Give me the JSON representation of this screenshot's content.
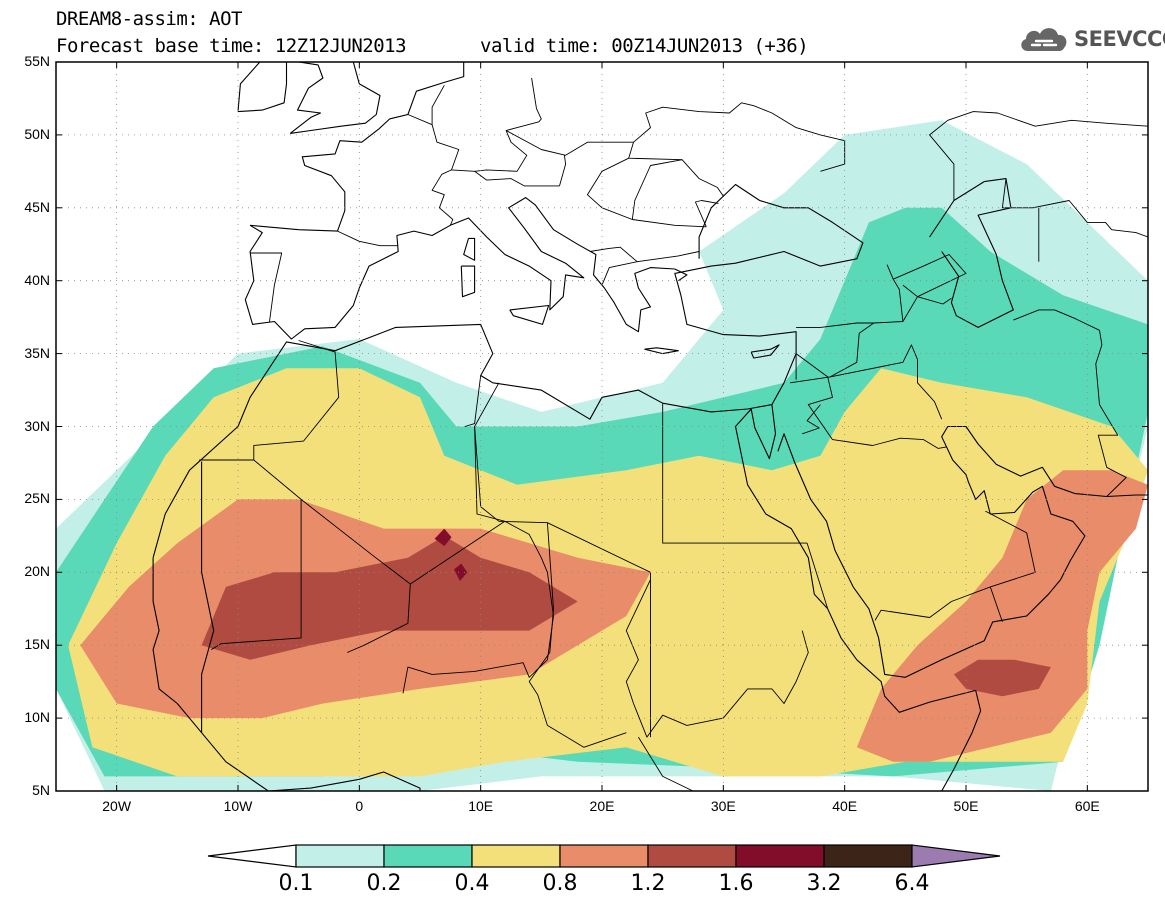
{
  "header": {
    "title": "DREAM8-assim: AOT",
    "forecast_base": "Forecast base time: 12Z12JUN2013",
    "valid_time": "valid time: 00Z14JUN2013 (+36)",
    "logo_text": "SEEVCCC",
    "logo_icon": "cloud-icon"
  },
  "map": {
    "lon_range": [
      -25,
      65
    ],
    "lat_range": [
      5,
      55
    ],
    "lat_ticks": [
      {
        "value": 55,
        "label": "55N"
      },
      {
        "value": 50,
        "label": "50N"
      },
      {
        "value": 45,
        "label": "45N"
      },
      {
        "value": 40,
        "label": "40N"
      },
      {
        "value": 35,
        "label": "35N"
      },
      {
        "value": 30,
        "label": "30N"
      },
      {
        "value": 25,
        "label": "25N"
      },
      {
        "value": 20,
        "label": "20N"
      },
      {
        "value": 15,
        "label": "15N"
      },
      {
        "value": 10,
        "label": "10N"
      },
      {
        "value": 5,
        "label": "5N"
      }
    ],
    "lon_ticks": [
      {
        "value": -20,
        "label": "20W"
      },
      {
        "value": -10,
        "label": "10W"
      },
      {
        "value": 0,
        "label": "0"
      },
      {
        "value": 10,
        "label": "10E"
      },
      {
        "value": 20,
        "label": "20E"
      },
      {
        "value": 30,
        "label": "30E"
      },
      {
        "value": 40,
        "label": "40E"
      },
      {
        "value": 50,
        "label": "50E"
      },
      {
        "value": 60,
        "label": "60E"
      }
    ],
    "grid": true,
    "field": "Aerosol optical thickness"
  },
  "colorbar": {
    "levels": [
      "0.1",
      "0.2",
      "0.4",
      "0.8",
      "1.2",
      "1.6",
      "3.2",
      "6.4"
    ],
    "colors": [
      "#ffffff",
      "#c3efe9",
      "#5ad9b8",
      "#f4e07a",
      "#e88c6a",
      "#b04b42",
      "#820d2a",
      "#3d2418",
      "#9b7bb0"
    ]
  },
  "chart_data": {
    "type": "heatmap",
    "variable": "AOT",
    "contour_levels": [
      0.1,
      0.2,
      0.4,
      0.8,
      1.2,
      1.6,
      3.2,
      6.4
    ],
    "regions": [
      {
        "level": 0.1,
        "lonlat": [
          [
            -25,
            23
          ],
          [
            -20,
            27
          ],
          [
            -15,
            31
          ],
          [
            -10,
            35
          ],
          [
            0,
            36
          ],
          [
            8,
            33
          ],
          [
            15,
            31
          ],
          [
            25,
            33
          ],
          [
            30,
            38
          ],
          [
            28,
            42
          ],
          [
            35,
            46
          ],
          [
            40,
            50
          ],
          [
            48,
            51
          ],
          [
            55,
            48
          ],
          [
            60,
            44
          ],
          [
            65,
            40
          ],
          [
            65,
            30
          ],
          [
            63,
            23
          ],
          [
            60,
            15
          ],
          [
            57,
            5
          ],
          [
            44,
            6
          ],
          [
            30,
            6
          ],
          [
            15,
            6
          ],
          [
            5,
            5
          ],
          [
            -21,
            5
          ],
          [
            -25,
            12
          ]
        ]
      },
      {
        "level": 0.2,
        "lonlat": [
          [
            -25,
            20
          ],
          [
            -21,
            25
          ],
          [
            -17,
            30
          ],
          [
            -12,
            34
          ],
          [
            -3,
            35.5
          ],
          [
            5,
            33
          ],
          [
            8,
            30
          ],
          [
            18,
            30
          ],
          [
            25,
            31
          ],
          [
            35,
            33
          ],
          [
            38,
            36
          ],
          [
            40,
            40
          ],
          [
            42,
            44
          ],
          [
            45,
            45
          ],
          [
            48,
            45
          ],
          [
            52,
            42
          ],
          [
            58,
            39
          ],
          [
            65,
            37
          ],
          [
            65,
            31
          ],
          [
            63,
            23
          ],
          [
            61,
            15
          ],
          [
            58,
            7
          ],
          [
            44,
            6
          ],
          [
            33,
            6.5
          ],
          [
            18,
            7
          ],
          [
            8,
            8
          ],
          [
            -3,
            6
          ],
          [
            -21,
            6
          ],
          [
            -25,
            12
          ]
        ]
      },
      {
        "level": 0.4,
        "lonlat": [
          [
            -24,
            15
          ],
          [
            -20,
            22
          ],
          [
            -16,
            28
          ],
          [
            -12,
            32
          ],
          [
            -6,
            34
          ],
          [
            0,
            34
          ],
          [
            5,
            32
          ],
          [
            7,
            28
          ],
          [
            13,
            26
          ],
          [
            22,
            27
          ],
          [
            28,
            28
          ],
          [
            34,
            27
          ],
          [
            38,
            28
          ],
          [
            40,
            31
          ],
          [
            43,
            34
          ],
          [
            48,
            33
          ],
          [
            55,
            32
          ],
          [
            62,
            30
          ],
          [
            65,
            27
          ],
          [
            63,
            22
          ],
          [
            61,
            18
          ],
          [
            60,
            11
          ],
          [
            58,
            7
          ],
          [
            45,
            7
          ],
          [
            38,
            6
          ],
          [
            30,
            6
          ],
          [
            22,
            8
          ],
          [
            12,
            7
          ],
          [
            5,
            6
          ],
          [
            -5,
            6
          ],
          [
            -15,
            6
          ],
          [
            -22,
            8
          ]
        ]
      },
      {
        "level": 0.8,
        "lonlat": [
          [
            -23,
            15
          ],
          [
            -19,
            19
          ],
          [
            -15,
            22
          ],
          [
            -10,
            25
          ],
          [
            -5,
            25
          ],
          [
            2,
            23
          ],
          [
            10,
            23
          ],
          [
            18,
            21
          ],
          [
            24,
            20
          ],
          [
            22,
            17
          ],
          [
            14,
            13
          ],
          [
            5,
            12
          ],
          [
            -3,
            11
          ],
          [
            -8,
            10
          ],
          [
            -14,
            10
          ],
          [
            -20,
            11
          ]
        ]
      },
      {
        "level": 0.8,
        "lonlat": [
          [
            41,
            8
          ],
          [
            43,
            12
          ],
          [
            46,
            15
          ],
          [
            50,
            18
          ],
          [
            53,
            21
          ],
          [
            55,
            25
          ],
          [
            58,
            27
          ],
          [
            62,
            27
          ],
          [
            65,
            26
          ],
          [
            64,
            23
          ],
          [
            61,
            20
          ],
          [
            60,
            16
          ],
          [
            60,
            12
          ],
          [
            57,
            9
          ],
          [
            52,
            8
          ],
          [
            47,
            7
          ],
          [
            44,
            7
          ]
        ]
      },
      {
        "level": 1.2,
        "lonlat": [
          [
            -13,
            15
          ],
          [
            -11,
            19
          ],
          [
            -7,
            20
          ],
          [
            -2,
            20
          ],
          [
            4,
            21
          ],
          [
            7,
            22.5
          ],
          [
            10,
            21
          ],
          [
            14,
            20
          ],
          [
            18,
            18
          ],
          [
            14,
            16
          ],
          [
            8,
            16
          ],
          [
            2,
            16
          ],
          [
            -4,
            15
          ],
          [
            -9,
            14
          ]
        ]
      },
      {
        "level": 1.2,
        "lonlat": [
          [
            49,
            13
          ],
          [
            51,
            14
          ],
          [
            54,
            14
          ],
          [
            57,
            13.5
          ],
          [
            56,
            12
          ],
          [
            53,
            11.5
          ],
          [
            50,
            12
          ]
        ]
      },
      {
        "level": 1.6,
        "lonlat": [
          [
            6.2,
            22.3
          ],
          [
            7,
            23
          ],
          [
            7.6,
            22.4
          ],
          [
            7,
            21.8
          ]
        ]
      },
      {
        "level": 1.6,
        "lonlat": [
          [
            7.8,
            20.2
          ],
          [
            8.4,
            20.6
          ],
          [
            8.9,
            20
          ],
          [
            8.3,
            19.4
          ]
        ]
      }
    ]
  }
}
